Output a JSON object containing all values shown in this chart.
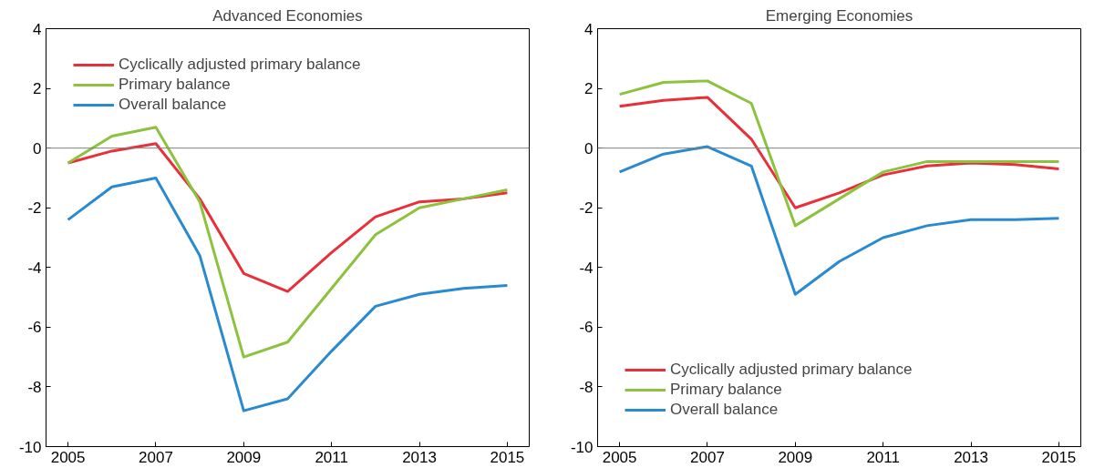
{
  "chart_data": [
    {
      "type": "line",
      "title": "Advanced Economies",
      "x": [
        2005,
        2006,
        2007,
        2008,
        2009,
        2010,
        2011,
        2012,
        2013,
        2014,
        2015
      ],
      "xlim": [
        2004.5,
        2015.5
      ],
      "xticks": [
        2005,
        2007,
        2009,
        2011,
        2013,
        2015
      ],
      "ylim": [
        -10,
        4
      ],
      "yticks": [
        -10,
        -8,
        -6,
        -4,
        -2,
        0,
        2,
        4
      ],
      "grid": false,
      "legend": "top left",
      "ref_lines": [
        {
          "axis": "y",
          "value": 0,
          "color": "#808080"
        }
      ],
      "series": [
        {
          "name": "Cyclically adjusted primary balance",
          "color": "#e8303a",
          "values": [
            -0.5,
            -0.1,
            0.15,
            -1.7,
            -4.2,
            -4.8,
            -3.5,
            -2.3,
            -1.8,
            -1.7,
            -1.5
          ]
        },
        {
          "name": "Primary balance",
          "color": "#8dc23f",
          "values": [
            -0.5,
            0.4,
            0.7,
            -1.8,
            -7.0,
            -6.5,
            -4.7,
            -2.9,
            -2.0,
            -1.7,
            -1.4
          ]
        },
        {
          "name": "Overall balance",
          "color": "#2a8ad0",
          "values": [
            -2.4,
            -1.3,
            -1.0,
            -3.6,
            -8.8,
            -8.4,
            -6.8,
            -5.3,
            -4.9,
            -4.7,
            -4.6
          ]
        }
      ]
    },
    {
      "type": "line",
      "title": "Emerging Economies",
      "x": [
        2005,
        2006,
        2007,
        2008,
        2009,
        2010,
        2011,
        2012,
        2013,
        2014,
        2015
      ],
      "xlim": [
        2004.5,
        2015.5
      ],
      "xticks": [
        2005,
        2007,
        2009,
        2011,
        2013,
        2015
      ],
      "ylim": [
        -10,
        4
      ],
      "yticks": [
        -10,
        -8,
        -6,
        -4,
        -2,
        0,
        2,
        4
      ],
      "grid": false,
      "legend": "bottom left",
      "ref_lines": [
        {
          "axis": "y",
          "value": 0,
          "color": "#808080"
        }
      ],
      "series": [
        {
          "name": "Cyclically adjusted primary balance",
          "color": "#e8303a",
          "values": [
            1.4,
            1.6,
            1.7,
            0.3,
            -2.0,
            -1.5,
            -0.9,
            -0.6,
            -0.5,
            -0.55,
            -0.7
          ]
        },
        {
          "name": "Primary balance",
          "color": "#8dc23f",
          "values": [
            1.8,
            2.2,
            2.25,
            1.5,
            -2.6,
            -1.7,
            -0.8,
            -0.45,
            -0.45,
            -0.45,
            -0.45
          ]
        },
        {
          "name": "Overall balance",
          "color": "#2a8ad0",
          "values": [
            -0.8,
            -0.2,
            0.05,
            -0.6,
            -4.9,
            -3.8,
            -3.0,
            -2.6,
            -2.4,
            -2.4,
            -2.35
          ]
        }
      ]
    }
  ]
}
